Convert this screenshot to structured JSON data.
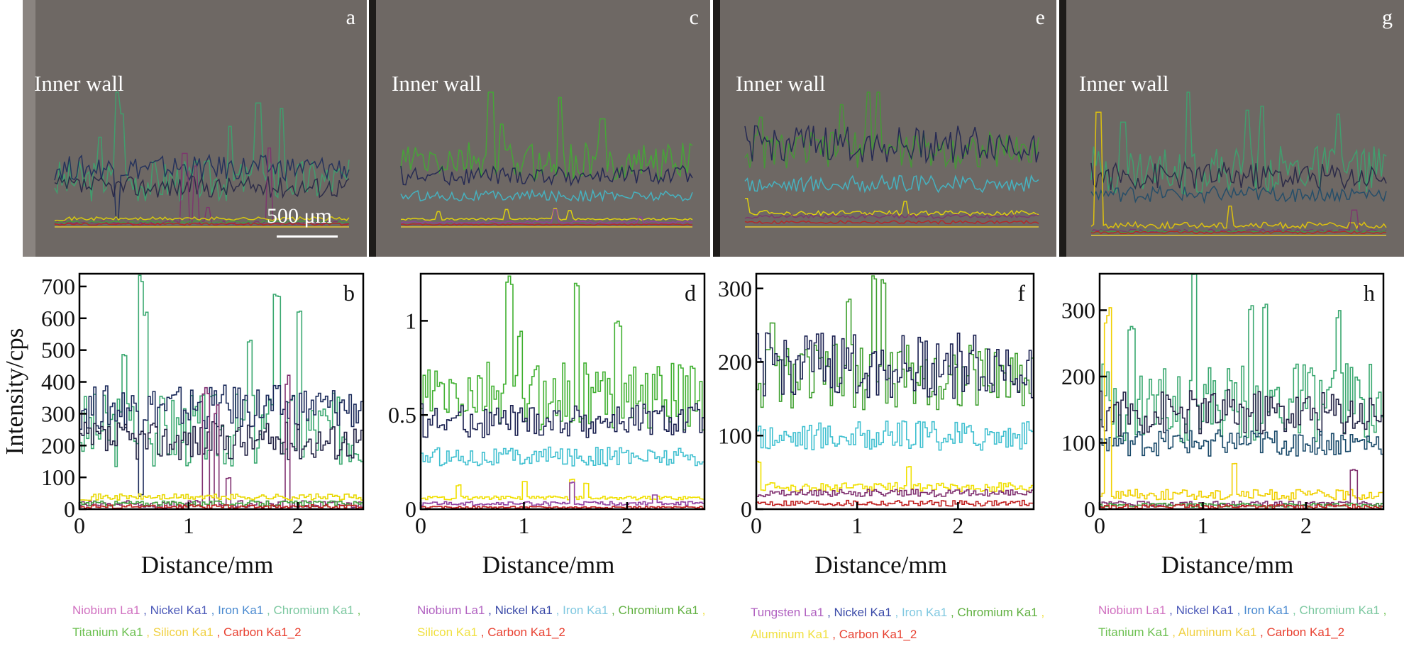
{
  "figure": {
    "sem_panels": [
      {
        "id": "a",
        "label": "a",
        "inner_wall": "Inner wall",
        "scale_bar": "500 μm"
      },
      {
        "id": "c",
        "label": "c",
        "inner_wall": "Inner wall"
      },
      {
        "id": "e",
        "label": "e",
        "inner_wall": "Inner wall"
      },
      {
        "id": "g",
        "label": "g",
        "inner_wall": "Inner wall"
      }
    ],
    "legends": [
      [
        {
          "text": "Niobium La1",
          "color": "#d070c0"
        },
        {
          "text": "Nickel Ka1",
          "color": "#4a58b8"
        },
        {
          "text": "Iron Ka1",
          "color": "#4a8ad0"
        },
        {
          "text": "Chromium Ka1",
          "color": "#7cc8a0"
        },
        {
          "text": "Titanium Ka1",
          "color": "#6cc050"
        },
        {
          "text": "Silicon Ka1",
          "color": "#f0d040"
        },
        {
          "text": "Carbon Ka1_2",
          "color": "#e84030"
        }
      ],
      [
        {
          "text": "Niobium La1",
          "color": "#b060c0"
        },
        {
          "text": "Nickel Ka1",
          "color": "#3a4aa8"
        },
        {
          "text": "Iron Ka1",
          "color": "#80c8e0"
        },
        {
          "text": "Chromium Ka1",
          "color": "#60b040"
        },
        {
          "text": "Silicon Ka1",
          "color": "#f0e040"
        },
        {
          "text": "Carbon Ka1_2",
          "color": "#e84030"
        }
      ],
      [
        {
          "text": "Tungsten La1",
          "color": "#b060c0"
        },
        {
          "text": "Nickel Ka1",
          "color": "#3a4aa8"
        },
        {
          "text": "Iron Ka1",
          "color": "#80c8e0"
        },
        {
          "text": "Chromium Ka1",
          "color": "#60b040"
        },
        {
          "text": "Aluminum Ka1",
          "color": "#f0e040"
        },
        {
          "text": "Carbon Ka1_2",
          "color": "#e84030"
        }
      ],
      [
        {
          "text": "Niobium La1",
          "color": "#d070c0"
        },
        {
          "text": "Nickel Ka1",
          "color": "#4a58b8"
        },
        {
          "text": "Iron Ka1",
          "color": "#4a8ad0"
        },
        {
          "text": "Chromium Ka1",
          "color": "#7cc8a0"
        },
        {
          "text": "Titanium Ka1",
          "color": "#6cc050"
        },
        {
          "text": "Aluminum Ka1",
          "color": "#f0d040"
        },
        {
          "text": "Carbon Ka1_2",
          "color": "#e84030"
        }
      ]
    ]
  },
  "chart_data": [
    {
      "id": "b",
      "panel_label": "b",
      "type": "line",
      "xlabel": "Distance/mm",
      "ylabel": "Intensity/cps",
      "xlim": [
        0,
        2.6
      ],
      "ylim": [
        0,
        740
      ],
      "xticks": [
        0,
        1,
        2
      ],
      "yticks": [
        0,
        100,
        200,
        300,
        400,
        500,
        600,
        700
      ],
      "ytick_labels": [
        "0",
        "100",
        "200",
        "300",
        "400",
        "500",
        "600",
        "700"
      ],
      "series": [
        {
          "name": "Chromium Ka1",
          "color": "#3aa870",
          "base": 250,
          "amp": 120,
          "peaks": [
            [
              0.55,
              740
            ],
            [
              0.6,
              620
            ],
            [
              1.8,
              680
            ],
            [
              2.0,
              650
            ],
            [
              0.4,
              490
            ],
            [
              1.55,
              550
            ]
          ]
        },
        {
          "name": "Iron Ka1",
          "color": "#1a2a5a",
          "base": 320,
          "amp": 70,
          "peaks": [
            [
              0.55,
              40
            ]
          ]
        },
        {
          "name": "Nickel Ka1",
          "color": "#222244",
          "base": 215,
          "amp": 60,
          "peaks": []
        },
        {
          "name": "Niobium La1",
          "color": "#803070",
          "base": 15,
          "amp": 12,
          "peaks": [
            [
              1.15,
              400
            ],
            [
              1.25,
              330
            ],
            [
              1.9,
              430
            ],
            [
              1.35,
              100
            ]
          ]
        },
        {
          "name": "Silicon Ka1",
          "color": "#e8d800",
          "base": 38,
          "amp": 10,
          "peaks": []
        },
        {
          "name": "Titanium Ka1",
          "color": "#40a040",
          "base": 18,
          "amp": 8,
          "peaks": []
        },
        {
          "name": "Carbon Ka1_2",
          "color": "#c02020",
          "base": 8,
          "amp": 6,
          "peaks": []
        }
      ]
    },
    {
      "id": "d",
      "panel_label": "d",
      "type": "line",
      "xlabel": "Distance/mm",
      "ylabel": "",
      "xlim": [
        0,
        2.75
      ],
      "ylim": [
        0,
        1.25
      ],
      "xticks": [
        0,
        1,
        2
      ],
      "yticks": [
        0,
        0.5,
        1
      ],
      "ytick_labels": [
        "0",
        "0.5",
        "1"
      ],
      "series": [
        {
          "name": "Chromium Ka1",
          "color": "#40b030",
          "base": 0.6,
          "amp": 0.18,
          "peaks": [
            [
              0.85,
              1.25
            ],
            [
              1.5,
              1.2
            ],
            [
              0.95,
              0.95
            ],
            [
              1.9,
              1.0
            ]
          ]
        },
        {
          "name": "Nickel Ka1",
          "color": "#1a2050",
          "base": 0.47,
          "amp": 0.09,
          "peaks": []
        },
        {
          "name": "Iron Ka1",
          "color": "#40c0d0",
          "base": 0.28,
          "amp": 0.05,
          "peaks": []
        },
        {
          "name": "Silicon Ka1",
          "color": "#f0e000",
          "base": 0.06,
          "amp": 0.01,
          "peaks": [
            [
              0.35,
              0.13
            ],
            [
              1.0,
              0.15
            ],
            [
              1.45,
              0.16
            ],
            [
              1.6,
              0.14
            ]
          ]
        },
        {
          "name": "Niobium La1",
          "color": "#9040a0",
          "base": 0.03,
          "amp": 0.01,
          "peaks": [
            [
              1.45,
              0.15
            ],
            [
              2.25,
              0.08
            ]
          ]
        },
        {
          "name": "Carbon Ka1_2",
          "color": "#c02020",
          "base": 0.01,
          "amp": 0.005,
          "peaks": []
        }
      ]
    },
    {
      "id": "f",
      "panel_label": "f",
      "type": "line",
      "xlabel": "Distance/mm",
      "ylabel": "",
      "xlim": [
        0,
        2.75
      ],
      "ylim": [
        0,
        320
      ],
      "xticks": [
        0,
        1,
        2
      ],
      "yticks": [
        0,
        100,
        200,
        300
      ],
      "ytick_labels": [
        "0",
        "100",
        "200",
        "300"
      ],
      "series": [
        {
          "name": "Chromium Ka1",
          "color": "#40a030",
          "base": 180,
          "amp": 45,
          "peaks": [
            [
              1.15,
              320
            ],
            [
              1.25,
              320
            ],
            [
              0.9,
              290
            ],
            [
              0.15,
              260
            ]
          ]
        },
        {
          "name": "Nickel Ka1",
          "color": "#1a2050",
          "base": 195,
          "amp": 45,
          "peaks": []
        },
        {
          "name": "Iron Ka1",
          "color": "#40c0d0",
          "base": 100,
          "amp": 20,
          "peaks": []
        },
        {
          "name": "Aluminum Ka1",
          "color": "#f0e000",
          "base": 30,
          "amp": 6,
          "peaks": [
            [
              1.5,
              58
            ],
            [
              0.0,
              65
            ]
          ]
        },
        {
          "name": "Tungsten La1",
          "color": "#803070",
          "base": 22,
          "amp": 5,
          "peaks": []
        },
        {
          "name": "Carbon Ka1_2",
          "color": "#c02020",
          "base": 8,
          "amp": 4,
          "peaks": []
        }
      ]
    },
    {
      "id": "h",
      "panel_label": "h",
      "type": "line",
      "xlabel": "Distance/mm",
      "ylabel": "",
      "xlim": [
        0,
        2.75
      ],
      "ylim": [
        0,
        355
      ],
      "xticks": [
        0,
        1,
        2
      ],
      "yticks": [
        0,
        100,
        200,
        300
      ],
      "ytick_labels": [
        "0",
        "100",
        "200",
        "300"
      ],
      "series": [
        {
          "name": "Chromium Ka1",
          "color": "#3aa870",
          "base": 160,
          "amp": 60,
          "peaks": [
            [
              0.9,
              355
            ],
            [
              1.6,
              320
            ],
            [
              1.45,
              310
            ],
            [
              2.3,
              300
            ],
            [
              0.3,
              280
            ]
          ]
        },
        {
          "name": "Nickel Ka1",
          "color": "#222244",
          "base": 145,
          "amp": 35,
          "peaks": []
        },
        {
          "name": "Iron Ka1",
          "color": "#1a4a6a",
          "base": 100,
          "amp": 20,
          "peaks": []
        },
        {
          "name": "Aluminum Ka1",
          "color": "#f0d000",
          "base": 22,
          "amp": 8,
          "peaks": [
            [
              0.07,
              305
            ],
            [
              1.3,
              70
            ]
          ]
        },
        {
          "name": "Niobium La1",
          "color": "#803070",
          "base": 8,
          "amp": 4,
          "peaks": [
            [
              2.45,
              60
            ]
          ]
        },
        {
          "name": "Titanium Ka1",
          "color": "#40a040",
          "base": 6,
          "amp": 3,
          "peaks": []
        },
        {
          "name": "Carbon Ka1_2",
          "color": "#c02020",
          "base": 4,
          "amp": 3,
          "peaks": []
        }
      ]
    }
  ]
}
